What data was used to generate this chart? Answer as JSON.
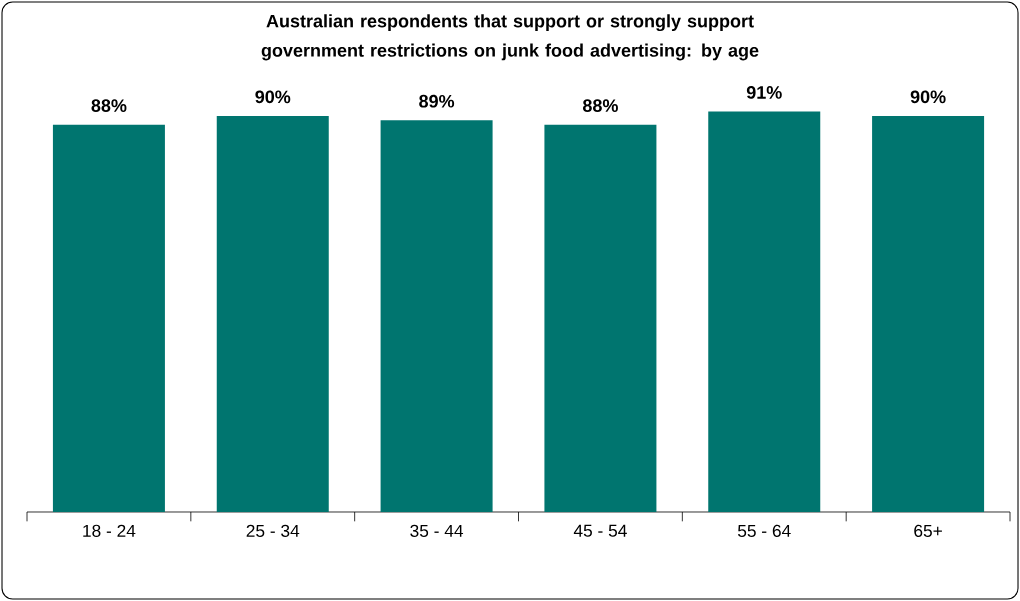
{
  "chart_data": {
    "type": "bar",
    "title": "Australian respondents that support or strongly support government restrictions on junk food advertising: by age",
    "categories": [
      "18 - 24",
      "25 - 34",
      "35 - 44",
      "45 - 54",
      "55 - 64",
      "65+"
    ],
    "values": [
      88,
      90,
      89,
      88,
      91,
      90
    ],
    "value_labels": [
      "88%",
      "90%",
      "89%",
      "88%",
      "91%",
      "90%"
    ],
    "color": "#00756f",
    "tick_labels": "x",
    "grid": false
  }
}
